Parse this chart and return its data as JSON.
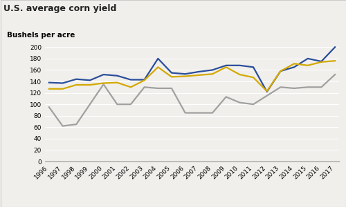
{
  "title": "U.S. average corn yield",
  "ylabel": "Bushels per acre",
  "years": [
    1996,
    1997,
    1998,
    1999,
    2000,
    2001,
    2002,
    2003,
    2004,
    2005,
    2006,
    2007,
    2008,
    2009,
    2010,
    2011,
    2012,
    2013,
    2014,
    2015,
    2016,
    2017
  ],
  "heartland": [
    138,
    137,
    144,
    142,
    152,
    150,
    143,
    143,
    180,
    155,
    153,
    157,
    160,
    168,
    168,
    165,
    122,
    158,
    165,
    180,
    175,
    200
  ],
  "southern_seaboard": [
    95,
    62,
    65,
    100,
    135,
    100,
    100,
    130,
    128,
    128,
    85,
    85,
    85,
    113,
    103,
    100,
    115,
    130,
    128,
    130,
    130,
    152
  ],
  "us_total": [
    127,
    127,
    134,
    134,
    137,
    138,
    130,
    142,
    165,
    148,
    149,
    151,
    153,
    165,
    152,
    147,
    123,
    158,
    171,
    168,
    174,
    176
  ],
  "heartland_color": "#2a4d9b",
  "southern_color": "#a0a0a0",
  "us_total_color": "#d4a800",
  "ylim": [
    0,
    210
  ],
  "yticks": [
    0,
    20,
    40,
    60,
    80,
    100,
    120,
    140,
    160,
    180,
    200
  ],
  "title_fontsize": 9,
  "label_fontsize": 7.5,
  "tick_fontsize": 6.5,
  "legend_fontsize": 7.5,
  "bg_color": "#f0efeb",
  "plot_bg_color": "#f0efeb",
  "border_color": "#cccccc",
  "grid_color": "#ffffff",
  "line_width": 1.6
}
